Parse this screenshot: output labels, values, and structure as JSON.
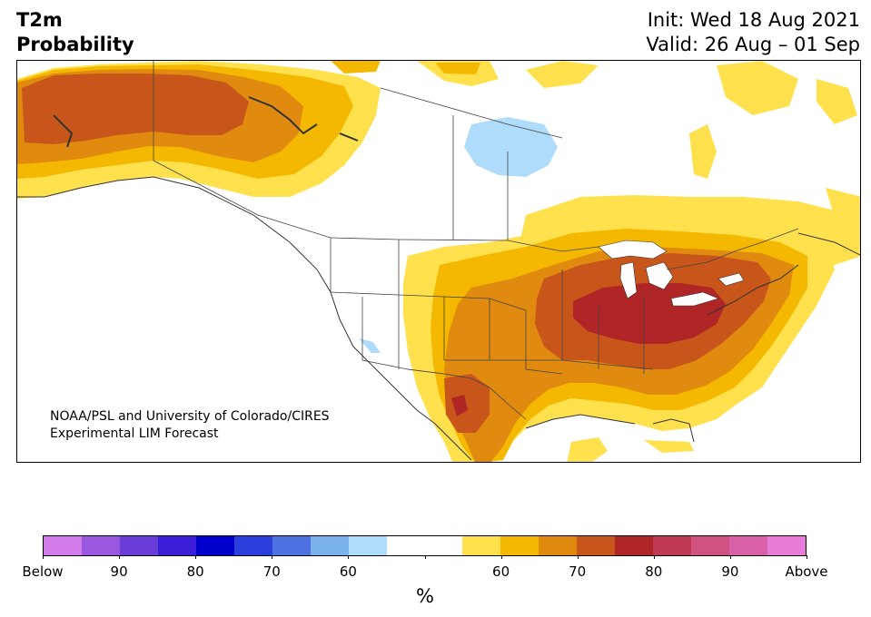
{
  "header": {
    "variable": "T2m",
    "subtitle": "Probability",
    "init": "Init: Wed 18 Aug 2021",
    "valid": "Valid: 26 Aug – 01 Sep"
  },
  "credit": {
    "line1": "NOAA/PSL and University of Colorado/CIRES",
    "line2": "Experimental LIM Forecast"
  },
  "colorbar": {
    "colors": [
      "#d37be8",
      "#9a57e0",
      "#6a3cd8",
      "#3a1ed8",
      "#0000cc",
      "#2a3fdc",
      "#4e72e2",
      "#7ab2ee",
      "#afdcfa",
      "#ffffff",
      "#ffffff",
      "#ffe14d",
      "#f5b800",
      "#e08a10",
      "#c8561a",
      "#b02525",
      "#c03a56",
      "#cf5280",
      "#da60a8",
      "#e87ad8"
    ],
    "tick_labels": [
      "Below",
      "90",
      "80",
      "70",
      "60",
      "",
      "60",
      "70",
      "80",
      "90",
      "Above"
    ],
    "unit": "%"
  },
  "map": {
    "region": "North America",
    "anomaly_colors": {
      "cold_60": "#afdcfa",
      "warm_55": "#ffe14d",
      "warm_60": "#f5b800",
      "warm_70": "#e08a10",
      "warm_75": "#c8561a",
      "warm_80": "#b02525"
    }
  }
}
